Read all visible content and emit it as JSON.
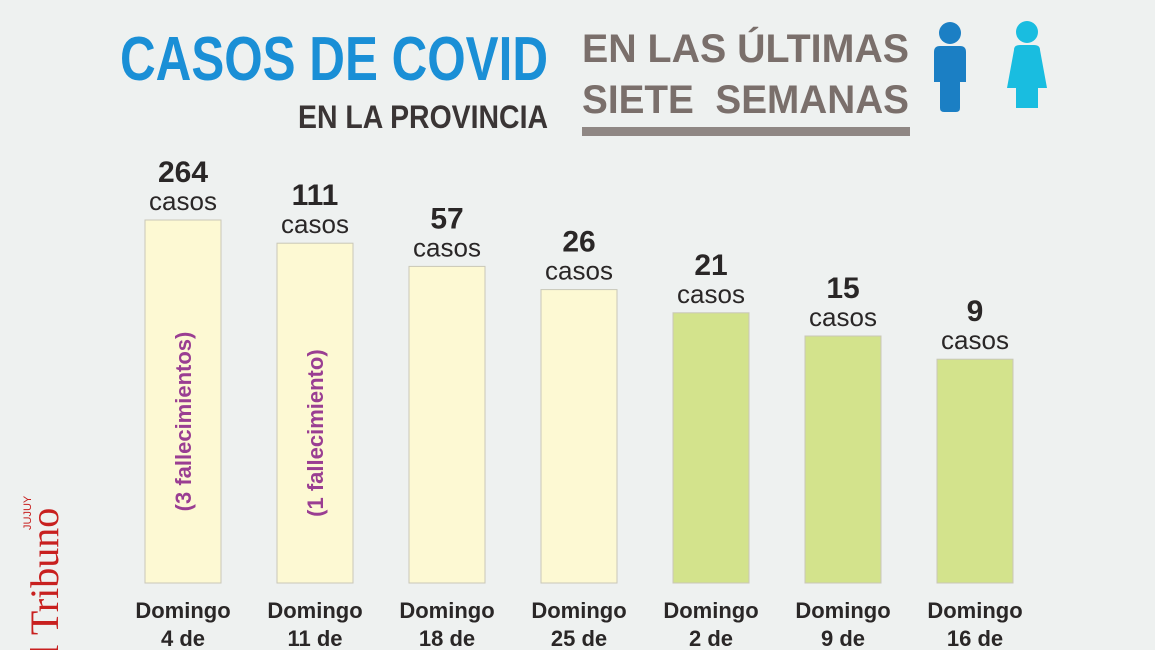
{
  "header": {
    "title": "CASOS DE COVID",
    "subtitle": "EN LA PROVINCIA",
    "period_line1": "EN LAS ÚLTIMAS",
    "period_line2": "SIETE  SEMANAS"
  },
  "logo": {
    "name": "El Tribuno",
    "region": "JUJUY"
  },
  "bars": [
    {
      "value": 264,
      "unit": "casos",
      "note": "(3 fallecimientos)",
      "day": "Domingo",
      "date": "4 de",
      "color": "#fdf9d3"
    },
    {
      "value": 111,
      "unit": "casos",
      "note": "(1 fallecimiento)",
      "day": "Domingo",
      "date": "11 de",
      "color": "#fdf9d3"
    },
    {
      "value": 57,
      "unit": "casos",
      "day": "Domingo",
      "date": "18 de",
      "color": "#fdf9d3"
    },
    {
      "value": 26,
      "unit": "casos",
      "day": "Domingo",
      "date": "25 de",
      "color": "#fdf9d3"
    },
    {
      "value": 21,
      "unit": "casos",
      "day": "Domingo",
      "date": "2 de",
      "color": "#d3e38c"
    },
    {
      "value": 15,
      "unit": "casos",
      "day": "Domingo",
      "date": "9 de",
      "color": "#d3e38c"
    },
    {
      "value": 9,
      "unit": "casos",
      "day": "Domingo",
      "date": "16 de",
      "color": "#d3e38c"
    }
  ]
}
